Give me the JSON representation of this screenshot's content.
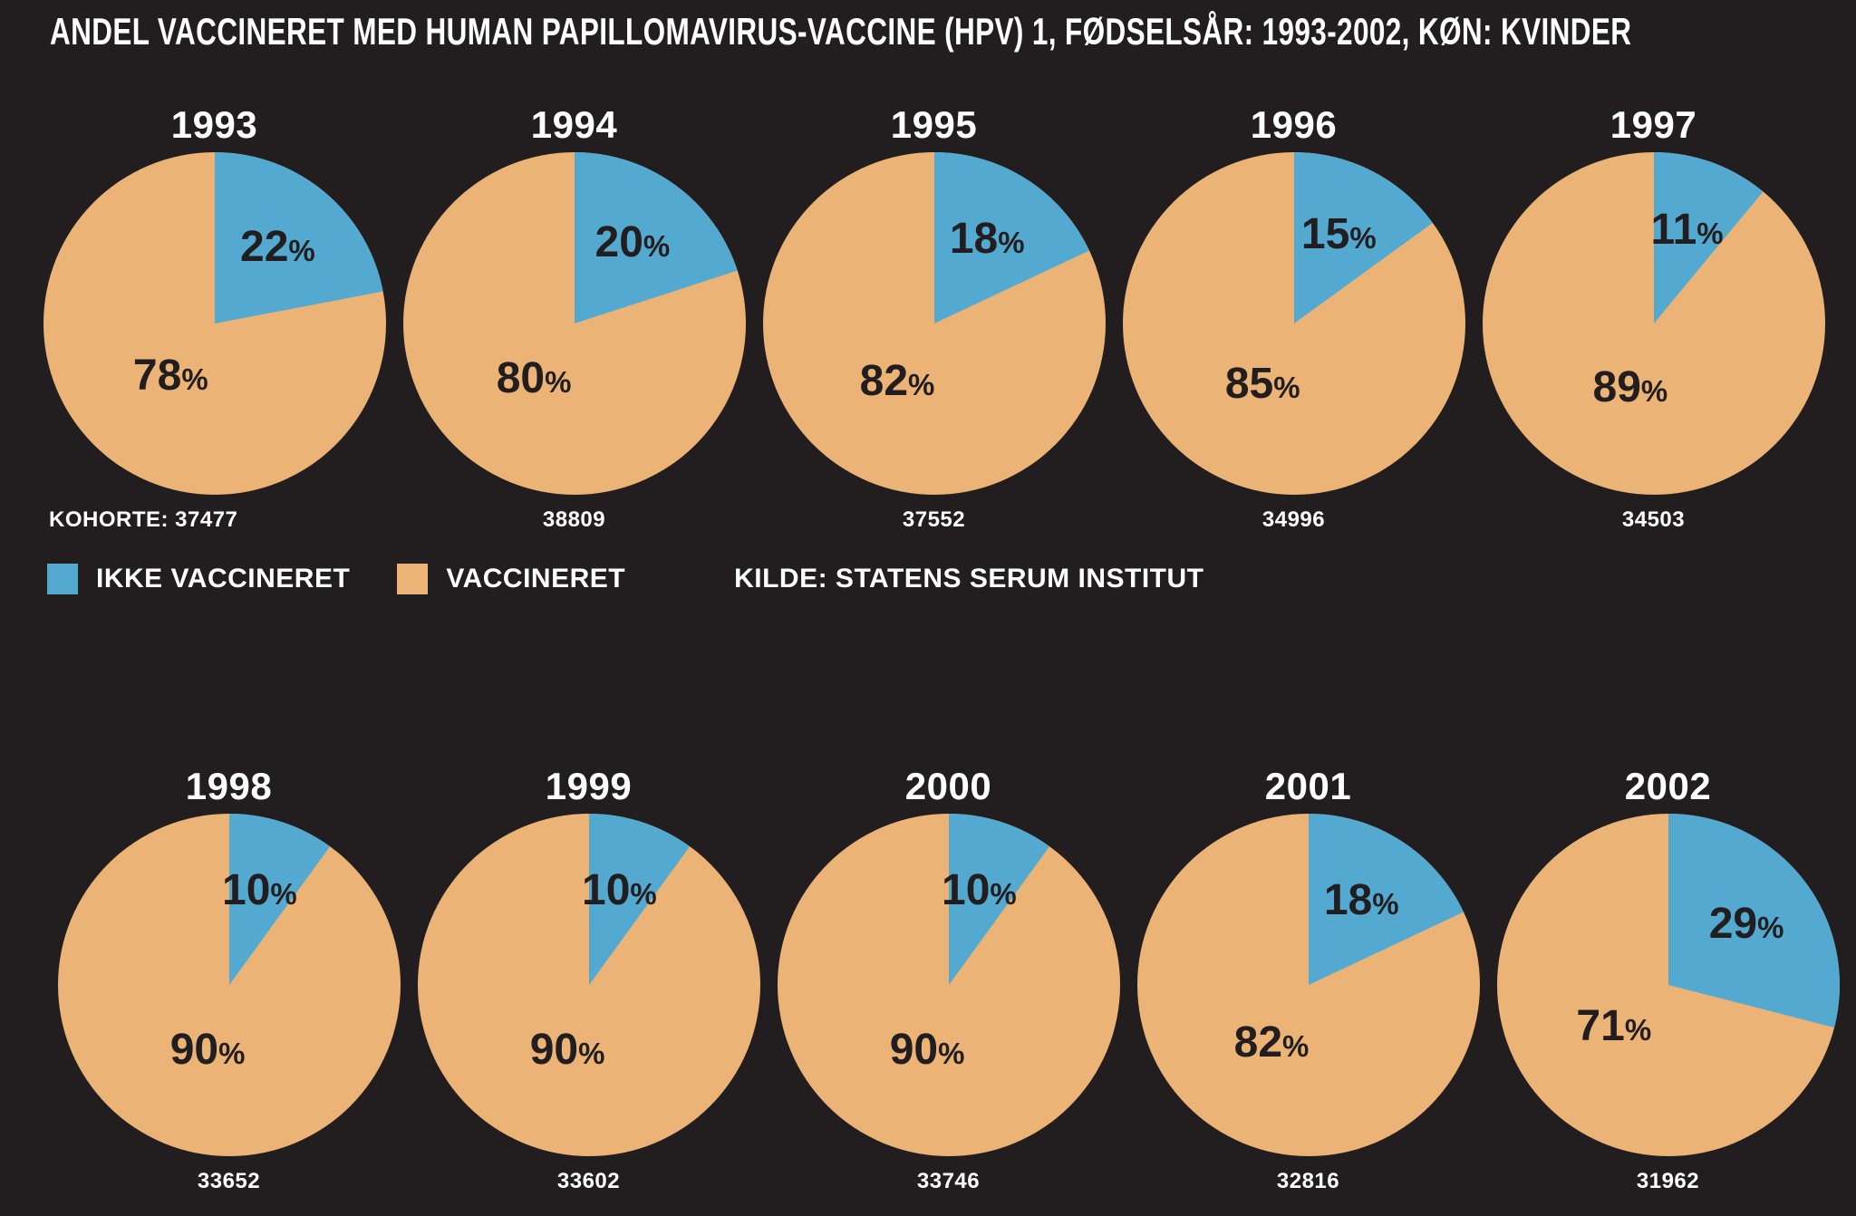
{
  "title": "ANDEL VACCINERET MED HUMAN PAPILLOMAVIRUS-VACCINE (HPV) 1, FØDSELSÅR: 1993-2002, KØN: KVINDER",
  "legend": {
    "not_vaccinated_label": "IKKE VACCINERET",
    "vaccinated_label": "VACCINERET",
    "source_label": "KILDE: STATENS SERUM INSTITUT"
  },
  "colors": {
    "background": "#221E1F",
    "not_vaccinated": "#53A9D0",
    "vaccinated": "#EBB476",
    "pct_label": "#221E1F",
    "text_light": "#FFFFFF"
  },
  "chart_data": {
    "type": "pie",
    "title": "ANDEL VACCINERET MED HUMAN PAPILLOMAVIRUS-VACCINE (HPV) 1, FØDSELSÅR: 1993-2002, KØN: KVINDER",
    "legend_entries": [
      "IKKE VACCINERET",
      "VACCINERET"
    ],
    "source": "KILDE: STATENS SERUM INSTITUT",
    "pct_sign": "%",
    "layout": "two rows of five pies; blue (ikke vaccineret) slice starts at 12 o'clock and sweeps clockwise; legend between rows",
    "pies": [
      {
        "year": "1993",
        "not_vaccinated_pct": 22,
        "vaccinated_pct": 78,
        "cohort": 37477,
        "cohort_display": "KOHORTE: 37477"
      },
      {
        "year": "1994",
        "not_vaccinated_pct": 20,
        "vaccinated_pct": 80,
        "cohort": 38809,
        "cohort_display": "38809"
      },
      {
        "year": "1995",
        "not_vaccinated_pct": 18,
        "vaccinated_pct": 82,
        "cohort": 37552,
        "cohort_display": "37552"
      },
      {
        "year": "1996",
        "not_vaccinated_pct": 15,
        "vaccinated_pct": 85,
        "cohort": 34996,
        "cohort_display": "34996"
      },
      {
        "year": "1997",
        "not_vaccinated_pct": 11,
        "vaccinated_pct": 89,
        "cohort": 34503,
        "cohort_display": "34503"
      },
      {
        "year": "1998",
        "not_vaccinated_pct": 10,
        "vaccinated_pct": 90,
        "cohort": 33652,
        "cohort_display": "33652"
      },
      {
        "year": "1999",
        "not_vaccinated_pct": 10,
        "vaccinated_pct": 90,
        "cohort": 33602,
        "cohort_display": "33602"
      },
      {
        "year": "2000",
        "not_vaccinated_pct": 10,
        "vaccinated_pct": 90,
        "cohort": 33746,
        "cohort_display": "33746"
      },
      {
        "year": "2001",
        "not_vaccinated_pct": 18,
        "vaccinated_pct": 82,
        "cohort": 32816,
        "cohort_display": "32816"
      },
      {
        "year": "2002",
        "not_vaccinated_pct": 29,
        "vaccinated_pct": 71,
        "cohort": 31962,
        "cohort_display": "31962"
      }
    ]
  }
}
